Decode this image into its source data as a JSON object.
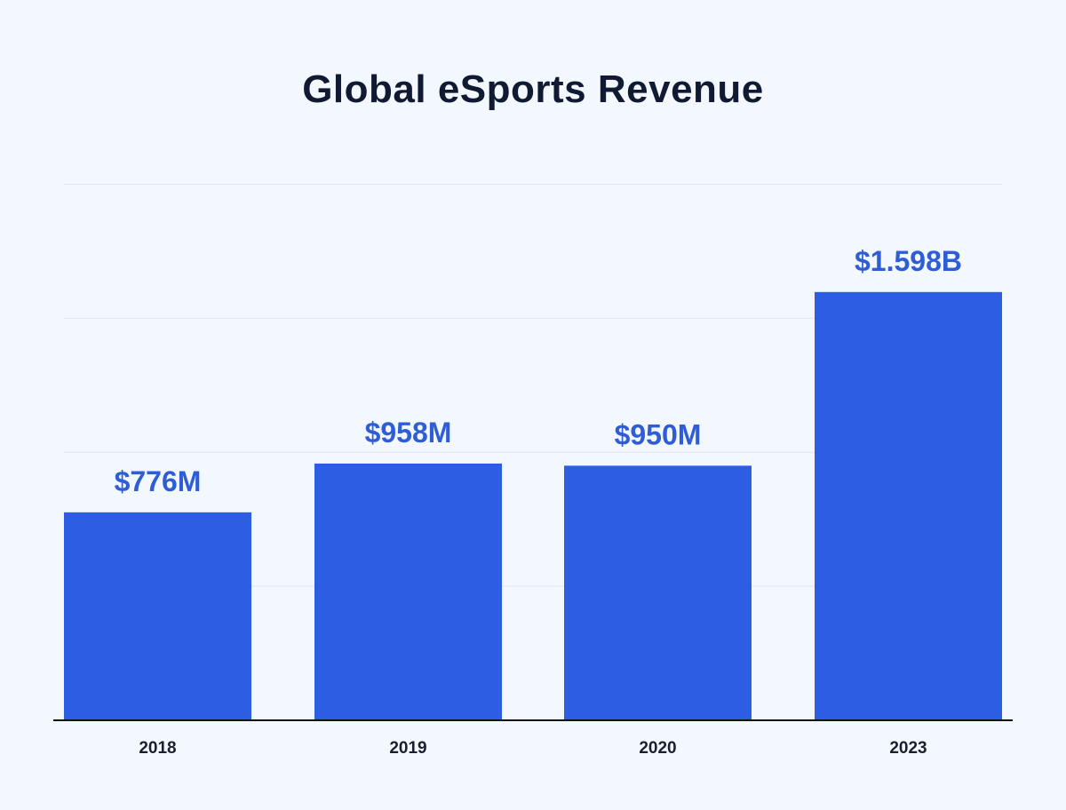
{
  "chart_data": {
    "type": "bar",
    "title": "Global eSports Revenue",
    "xlabel": "",
    "ylabel": "",
    "unit": "USD millions",
    "categories": [
      "2018",
      "2019",
      "2020",
      "2023"
    ],
    "values": [
      776,
      958,
      950,
      1598
    ],
    "data_labels": [
      "$776M",
      "$958M",
      "$950M",
      "$1.598B"
    ],
    "ylim": [
      0,
      2000
    ],
    "grid": true,
    "legend": "none"
  },
  "colors": {
    "background": "#f3f8fe",
    "bar": "#2d5de3",
    "data_label": "#2e5dd6",
    "title": "#111a33",
    "tick_label": "#1a1f2e",
    "gridline": "#dfe6ee",
    "axis": "#111111"
  }
}
